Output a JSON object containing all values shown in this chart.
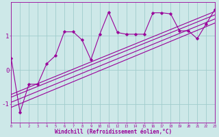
{
  "background_color": "#cde8e8",
  "line_color": "#990099",
  "grid_color": "#a0cccc",
  "xlabel": "Windchill (Refroidissement éolien,°C)",
  "xlabel_color": "#990099",
  "xlim": [
    0,
    23
  ],
  "ylim": [
    -1.55,
    2.0
  ],
  "x_ticks": [
    0,
    1,
    2,
    3,
    4,
    5,
    6,
    7,
    8,
    9,
    10,
    11,
    12,
    13,
    14,
    15,
    16,
    17,
    18,
    19,
    20,
    21,
    22,
    23
  ],
  "y_ticks": [
    -1,
    0,
    1
  ],
  "wiggly_x": [
    0,
    1,
    2,
    3,
    4,
    5,
    6,
    7,
    8,
    9,
    10,
    11,
    12,
    13,
    14,
    15,
    16,
    17,
    18,
    19,
    20,
    21,
    22,
    23
  ],
  "wiggly_y": [
    0.35,
    -1.25,
    -0.42,
    -0.42,
    0.18,
    0.42,
    1.12,
    1.12,
    0.88,
    0.3,
    1.05,
    1.7,
    1.1,
    1.05,
    1.05,
    1.05,
    1.68,
    1.68,
    1.65,
    1.15,
    1.15,
    0.92,
    1.35,
    1.78
  ],
  "reg_lines": [
    {
      "x0": 0,
      "y0": -0.72,
      "x1": 23,
      "y1": 1.72
    },
    {
      "x0": 0,
      "y0": -0.8,
      "x1": 23,
      "y1": 1.62
    },
    {
      "x0": 0,
      "y0": -0.95,
      "x1": 23,
      "y1": 1.5
    },
    {
      "x0": 0,
      "y0": -1.1,
      "x1": 23,
      "y1": 1.38
    }
  ],
  "markersize": 2.5,
  "linewidth": 0.8
}
